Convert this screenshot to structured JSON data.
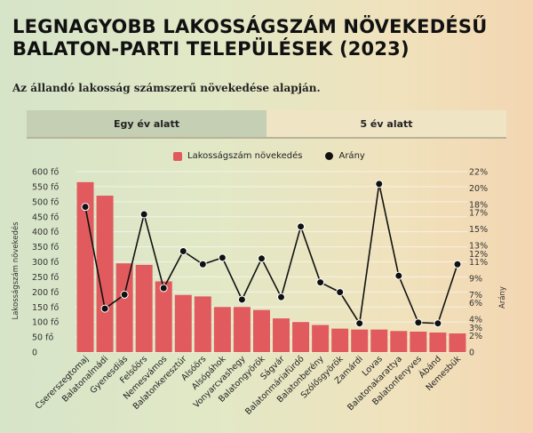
{
  "header": {
    "title": "LEGNAGYOBB LAKOSSÁGSZÁM NÖVEKEDÉSŰ BALATON-PARTI TELEPÜLÉSEK (2023)",
    "subtitle": "Az állandó lakosság számszerű növekedése alapján."
  },
  "tabs": [
    {
      "label": "Egy év alatt",
      "active": true
    },
    {
      "label": "5 év alatt",
      "active": false
    }
  ],
  "colors": {
    "bar": "#e05a5e",
    "line": "#111111"
  },
  "chart_data": {
    "type": "bar",
    "categories": [
      "Csererszegtomaj",
      "Balatonalmádi",
      "Gyenesdiás",
      "Felsőörs",
      "Nemesvámos",
      "Balatonkeresztúr",
      "Alsóörs",
      "Alsópáhok",
      "Vonyarcvashegy",
      "Balatongyörök",
      "Ságvár",
      "Balatonmáriafürdő",
      "Balatonberény",
      "Szólősgyörök",
      "Zamárdi",
      "Lovas",
      "Balatonakarattya",
      "Balatonfenyves",
      "Ábánd",
      "Nemesbük"
    ],
    "series": [
      {
        "name": "Lakosságszám növekedés",
        "axis": "left",
        "type": "bar",
        "values": [
          565,
          520,
          295,
          290,
          235,
          190,
          185,
          150,
          150,
          140,
          112,
          100,
          90,
          78,
          75,
          75,
          70,
          68,
          65,
          62
        ]
      },
      {
        "name": "Arány",
        "axis": "right",
        "type": "line",
        "values": [
          17.7,
          5.3,
          7.0,
          16.8,
          7.8,
          12.3,
          10.7,
          11.5,
          6.4,
          11.4,
          6.7,
          15.3,
          8.5,
          7.3,
          3.5,
          20.5,
          9.3,
          3.6,
          3.5,
          10.7
        ]
      }
    ],
    "ylabel": "Lakosságszám növekedés",
    "y2label": "Arány",
    "ylim": [
      0,
      600
    ],
    "y2lim": [
      0,
      22
    ],
    "yticks": [
      "0",
      "50 fő",
      "100 fő",
      "150 fő",
      "200 fő",
      "250 fő",
      "300 fő",
      "350 fő",
      "400 fő",
      "450 fő",
      "500 fő",
      "550 fő",
      "600 fő"
    ],
    "y2ticks": [
      "0",
      "2%",
      "3%",
      "4%",
      "6%",
      "7%",
      "9%",
      "11%",
      "12%",
      "13%",
      "15%",
      "17%",
      "18%",
      "20%",
      "22%"
    ],
    "y2tickvalues": [
      0,
      2,
      3,
      4,
      6,
      7,
      9,
      11,
      12,
      13,
      15,
      17,
      18,
      20,
      22
    ],
    "legend_position": "top-center",
    "grid": true
  }
}
